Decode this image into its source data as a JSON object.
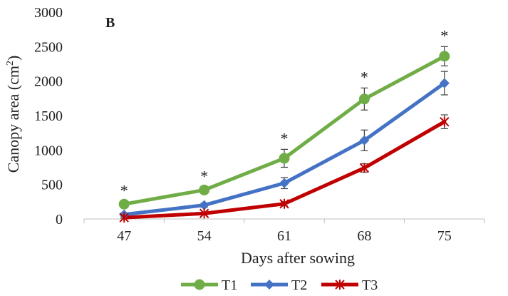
{
  "chart_data": {
    "type": "line",
    "panel_label": "B",
    "x": [
      "47",
      "54",
      "61",
      "68",
      "75"
    ],
    "xlabel": "Days after sowing",
    "ylabel": "Canopy area (cm",
    "ylabel_sup": "2",
    "ylabel_end": ")",
    "ylim": [
      0,
      3000
    ],
    "yticks": [
      "0",
      "500",
      "1000",
      "1500",
      "2000",
      "2500",
      "3000"
    ],
    "grid": false,
    "legend_position": "bottom",
    "series": [
      {
        "name": "T1",
        "color": "#70ad47",
        "marker": "circle",
        "values": [
          215,
          420,
          880,
          1740,
          2360
        ],
        "errors": [
          40,
          40,
          130,
          160,
          140
        ]
      },
      {
        "name": "T2",
        "color": "#4472c4",
        "marker": "diamond",
        "values": [
          65,
          200,
          520,
          1140,
          1970
        ],
        "errors": [
          20,
          30,
          80,
          150,
          170
        ]
      },
      {
        "name": "T3",
        "color": "#c00000",
        "marker": "star",
        "values": [
          20,
          80,
          220,
          740,
          1410
        ],
        "errors": [
          10,
          15,
          30,
          60,
          100
        ]
      }
    ],
    "annotations": [
      "*",
      "*",
      "*",
      "*",
      "*"
    ]
  }
}
